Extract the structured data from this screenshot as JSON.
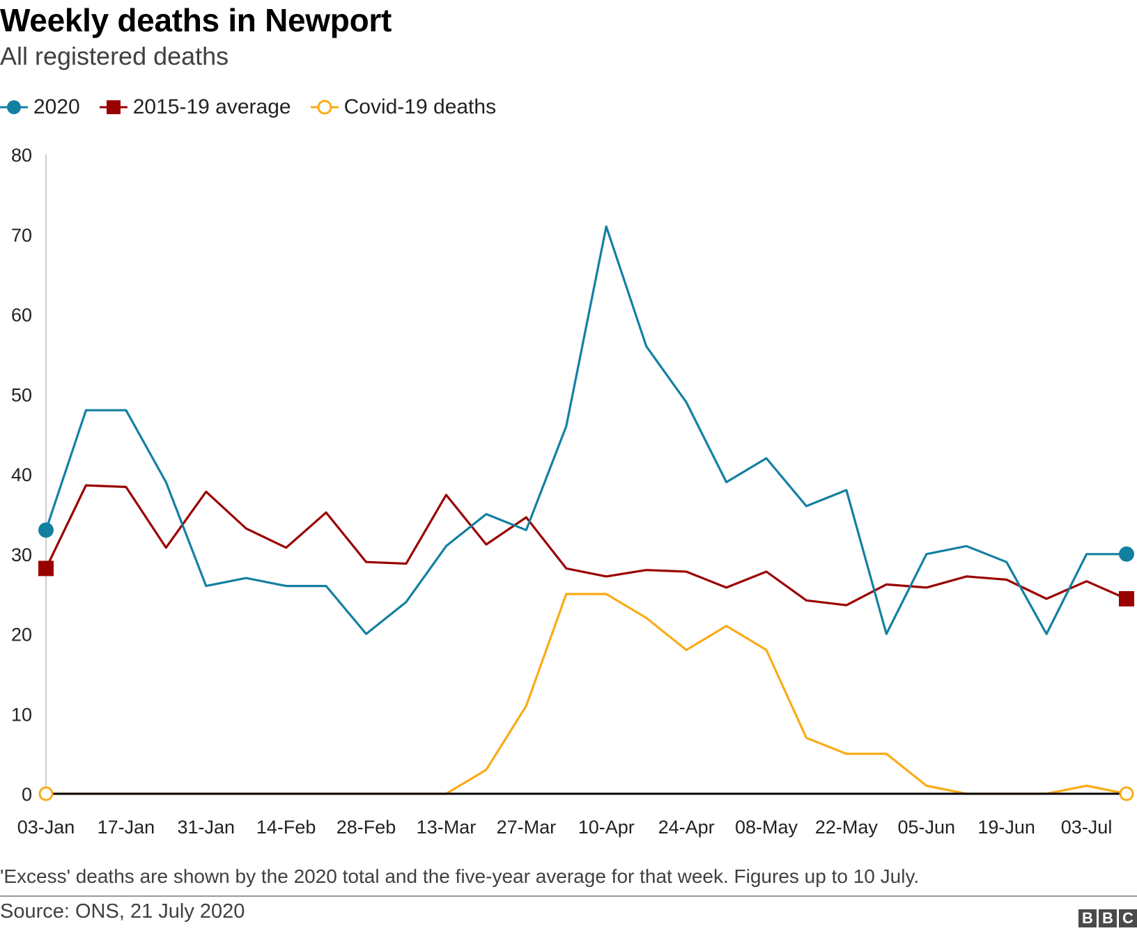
{
  "header": {
    "title": "Weekly deaths in Newport",
    "subtitle": "All registered deaths"
  },
  "legend": [
    {
      "label": "2020",
      "color": "#1380A1",
      "marker": "circle"
    },
    {
      "label": "2015-19 average",
      "color": "#990000",
      "marker": "square"
    },
    {
      "label": "Covid-19 deaths",
      "color": "#FAAB18",
      "marker": "hollow-circle"
    }
  ],
  "footer": {
    "note": "'Excess' deaths are shown by the 2020 total and the five-year average for that week. Figures up to 10 July.",
    "source": "Source: ONS, 21 July 2020",
    "logo": [
      "B",
      "B",
      "C"
    ]
  },
  "chart_data": {
    "type": "line",
    "title": "Weekly deaths in Newport",
    "subtitle": "All registered deaths",
    "x": [
      "03-Jan",
      "10-Jan",
      "17-Jan",
      "24-Jan",
      "31-Jan",
      "07-Feb",
      "14-Feb",
      "21-Feb",
      "28-Feb",
      "06-Mar",
      "13-Mar",
      "20-Mar",
      "27-Mar",
      "03-Apr",
      "10-Apr",
      "17-Apr",
      "24-Apr",
      "01-May",
      "08-May",
      "15-May",
      "22-May",
      "29-May",
      "05-Jun",
      "12-Jun",
      "19-Jun",
      "26-Jun",
      "03-Jul",
      "10-Jul"
    ],
    "x_tick_labels": [
      "03-Jan",
      "17-Jan",
      "31-Jan",
      "14-Feb",
      "28-Feb",
      "13-Mar",
      "27-Mar",
      "10-Apr",
      "24-Apr",
      "08-May",
      "22-May",
      "05-Jun",
      "19-Jun",
      "03-Jul"
    ],
    "ylim": [
      0,
      80
    ],
    "y_ticks": [
      0,
      10,
      20,
      30,
      40,
      50,
      60,
      70,
      80
    ],
    "grid": false,
    "legend_position": "top-left",
    "series": [
      {
        "name": "2020",
        "color": "#1380A1",
        "values": [
          33,
          48,
          48,
          39,
          26,
          27,
          26,
          26,
          20,
          24,
          31,
          35,
          33,
          46,
          71,
          56,
          49,
          39,
          42,
          36,
          38,
          20,
          30,
          31,
          29,
          20,
          30,
          30
        ]
      },
      {
        "name": "2015-19 average",
        "color": "#990000",
        "values": [
          28.2,
          38.6,
          38.4,
          30.8,
          37.8,
          33.2,
          30.8,
          35.2,
          29,
          28.8,
          37.4,
          31.2,
          34.6,
          28.2,
          27.2,
          28,
          27.8,
          25.8,
          27.8,
          24.2,
          23.6,
          26.2,
          25.8,
          27.2,
          26.8,
          24.4,
          26.6,
          24.4
        ]
      },
      {
        "name": "Covid-19 deaths",
        "color": "#FAAB18",
        "values": [
          0,
          0,
          0,
          0,
          0,
          0,
          0,
          0,
          0,
          0,
          0,
          3,
          11,
          25,
          25,
          22,
          18,
          21,
          18,
          7,
          5,
          5,
          1,
          0,
          0,
          0,
          1,
          0
        ]
      }
    ]
  }
}
